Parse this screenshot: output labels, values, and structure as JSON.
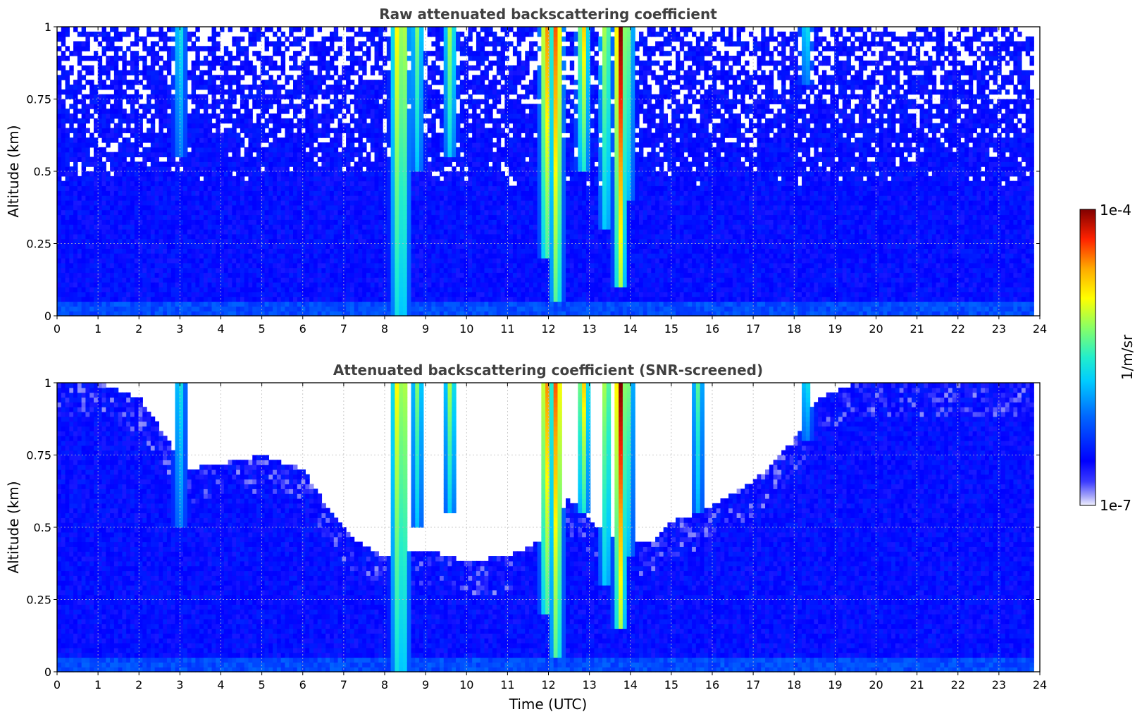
{
  "chart_data": [
    {
      "type": "heatmap",
      "title": "Raw attenuated backscattering coefficient",
      "ylabel": "Altitude (km)",
      "xlabel": "",
      "xlim": [
        0,
        24
      ],
      "ylim": [
        0,
        1
      ],
      "x_ticks": [
        "0",
        "1",
        "2",
        "3",
        "4",
        "5",
        "6",
        "7",
        "8",
        "9",
        "10",
        "11",
        "12",
        "13",
        "14",
        "15",
        "16",
        "17",
        "18",
        "19",
        "20",
        "21",
        "22",
        "23",
        "24"
      ],
      "y_ticks": [
        "0",
        "0.25",
        "0.5",
        "0.75",
        "1"
      ],
      "grid": true,
      "data_extent_x": [
        0,
        23.85
      ],
      "background_level": 0.16,
      "screened": false,
      "features": [
        {
          "time": 3.0,
          "top": 1.0,
          "base": 0.55,
          "intensity": 0.35
        },
        {
          "time": 8.3,
          "top": 1.0,
          "base": 0.0,
          "intensity": 0.55
        },
        {
          "time": 8.45,
          "top": 1.0,
          "base": 0.0,
          "intensity": 0.6
        },
        {
          "time": 8.8,
          "top": 1.0,
          "base": 0.5,
          "intensity": 0.45
        },
        {
          "time": 9.6,
          "top": 1.0,
          "base": 0.55,
          "intensity": 0.5
        },
        {
          "time": 11.95,
          "top": 1.0,
          "base": 0.2,
          "intensity": 0.75
        },
        {
          "time": 12.2,
          "top": 1.0,
          "base": 0.05,
          "intensity": 0.8
        },
        {
          "time": 12.85,
          "top": 1.0,
          "base": 0.5,
          "intensity": 0.65
        },
        {
          "time": 13.4,
          "top": 1.0,
          "base": 0.3,
          "intensity": 0.55
        },
        {
          "time": 13.75,
          "top": 1.0,
          "base": 0.1,
          "intensity": 0.9
        },
        {
          "time": 13.95,
          "top": 1.0,
          "base": 0.4,
          "intensity": 0.45
        },
        {
          "time": 18.3,
          "top": 1.0,
          "base": 0.8,
          "intensity": 0.35
        }
      ]
    },
    {
      "type": "heatmap",
      "title": "Attenuated backscattering coefficient (SNR-screened)",
      "ylabel": "Altitude (km)",
      "xlabel": "Time (UTC)",
      "xlim": [
        0,
        24
      ],
      "ylim": [
        0,
        1
      ],
      "x_ticks": [
        "0",
        "1",
        "2",
        "3",
        "4",
        "5",
        "6",
        "7",
        "8",
        "9",
        "10",
        "11",
        "12",
        "13",
        "14",
        "15",
        "16",
        "17",
        "18",
        "19",
        "20",
        "21",
        "22",
        "23",
        "24"
      ],
      "y_ticks": [
        "0",
        "0.25",
        "0.5",
        "0.75",
        "1"
      ],
      "grid": true,
      "data_extent_x": [
        0,
        23.85
      ],
      "background_level": 0.16,
      "screened": true,
      "screen_boundary": [
        [
          0,
          1.0
        ],
        [
          1,
          1.0
        ],
        [
          2,
          0.95
        ],
        [
          2.5,
          0.85
        ],
        [
          3.1,
          0.7
        ],
        [
          4,
          0.72
        ],
        [
          5,
          0.75
        ],
        [
          6,
          0.7
        ],
        [
          6.7,
          0.55
        ],
        [
          7.3,
          0.45
        ],
        [
          8,
          0.4
        ],
        [
          8.5,
          0.42
        ],
        [
          9,
          0.42
        ],
        [
          10,
          0.38
        ],
        [
          11,
          0.4
        ],
        [
          11.8,
          0.45
        ],
        [
          12.5,
          0.6
        ],
        [
          13.2,
          0.5
        ],
        [
          13.8,
          0.45
        ],
        [
          14.5,
          0.45
        ],
        [
          15,
          0.52
        ],
        [
          15.7,
          0.55
        ],
        [
          16.5,
          0.62
        ],
        [
          17.2,
          0.68
        ],
        [
          18,
          0.8
        ],
        [
          18.6,
          0.95
        ],
        [
          19.5,
          1.0
        ],
        [
          23.85,
          1.0
        ]
      ],
      "features": [
        {
          "time": 3.0,
          "top": 1.0,
          "base": 0.5,
          "intensity": 0.35
        },
        {
          "time": 8.3,
          "top": 1.0,
          "base": 0.0,
          "intensity": 0.55
        },
        {
          "time": 8.45,
          "top": 1.0,
          "base": 0.0,
          "intensity": 0.6
        },
        {
          "time": 8.8,
          "top": 1.0,
          "base": 0.5,
          "intensity": 0.45
        },
        {
          "time": 9.6,
          "top": 1.0,
          "base": 0.55,
          "intensity": 0.5
        },
        {
          "time": 11.95,
          "top": 1.0,
          "base": 0.2,
          "intensity": 0.75
        },
        {
          "time": 12.2,
          "top": 1.0,
          "base": 0.05,
          "intensity": 0.8
        },
        {
          "time": 12.85,
          "top": 1.0,
          "base": 0.55,
          "intensity": 0.65
        },
        {
          "time": 13.4,
          "top": 1.0,
          "base": 0.3,
          "intensity": 0.55
        },
        {
          "time": 13.75,
          "top": 1.0,
          "base": 0.15,
          "intensity": 0.9
        },
        {
          "time": 13.95,
          "top": 1.0,
          "base": 0.4,
          "intensity": 0.45
        },
        {
          "time": 15.65,
          "top": 1.0,
          "base": 0.55,
          "intensity": 0.4
        },
        {
          "time": 18.3,
          "top": 1.0,
          "base": 0.8,
          "intensity": 0.35
        }
      ]
    }
  ],
  "colorbar": {
    "label": "1/m/sr",
    "max_label": "1e-4",
    "min_label": "1e-7",
    "colormap": "jet"
  },
  "colors": {
    "title": "#404040",
    "grid": "#bdbdbd",
    "axis": "#000000"
  }
}
